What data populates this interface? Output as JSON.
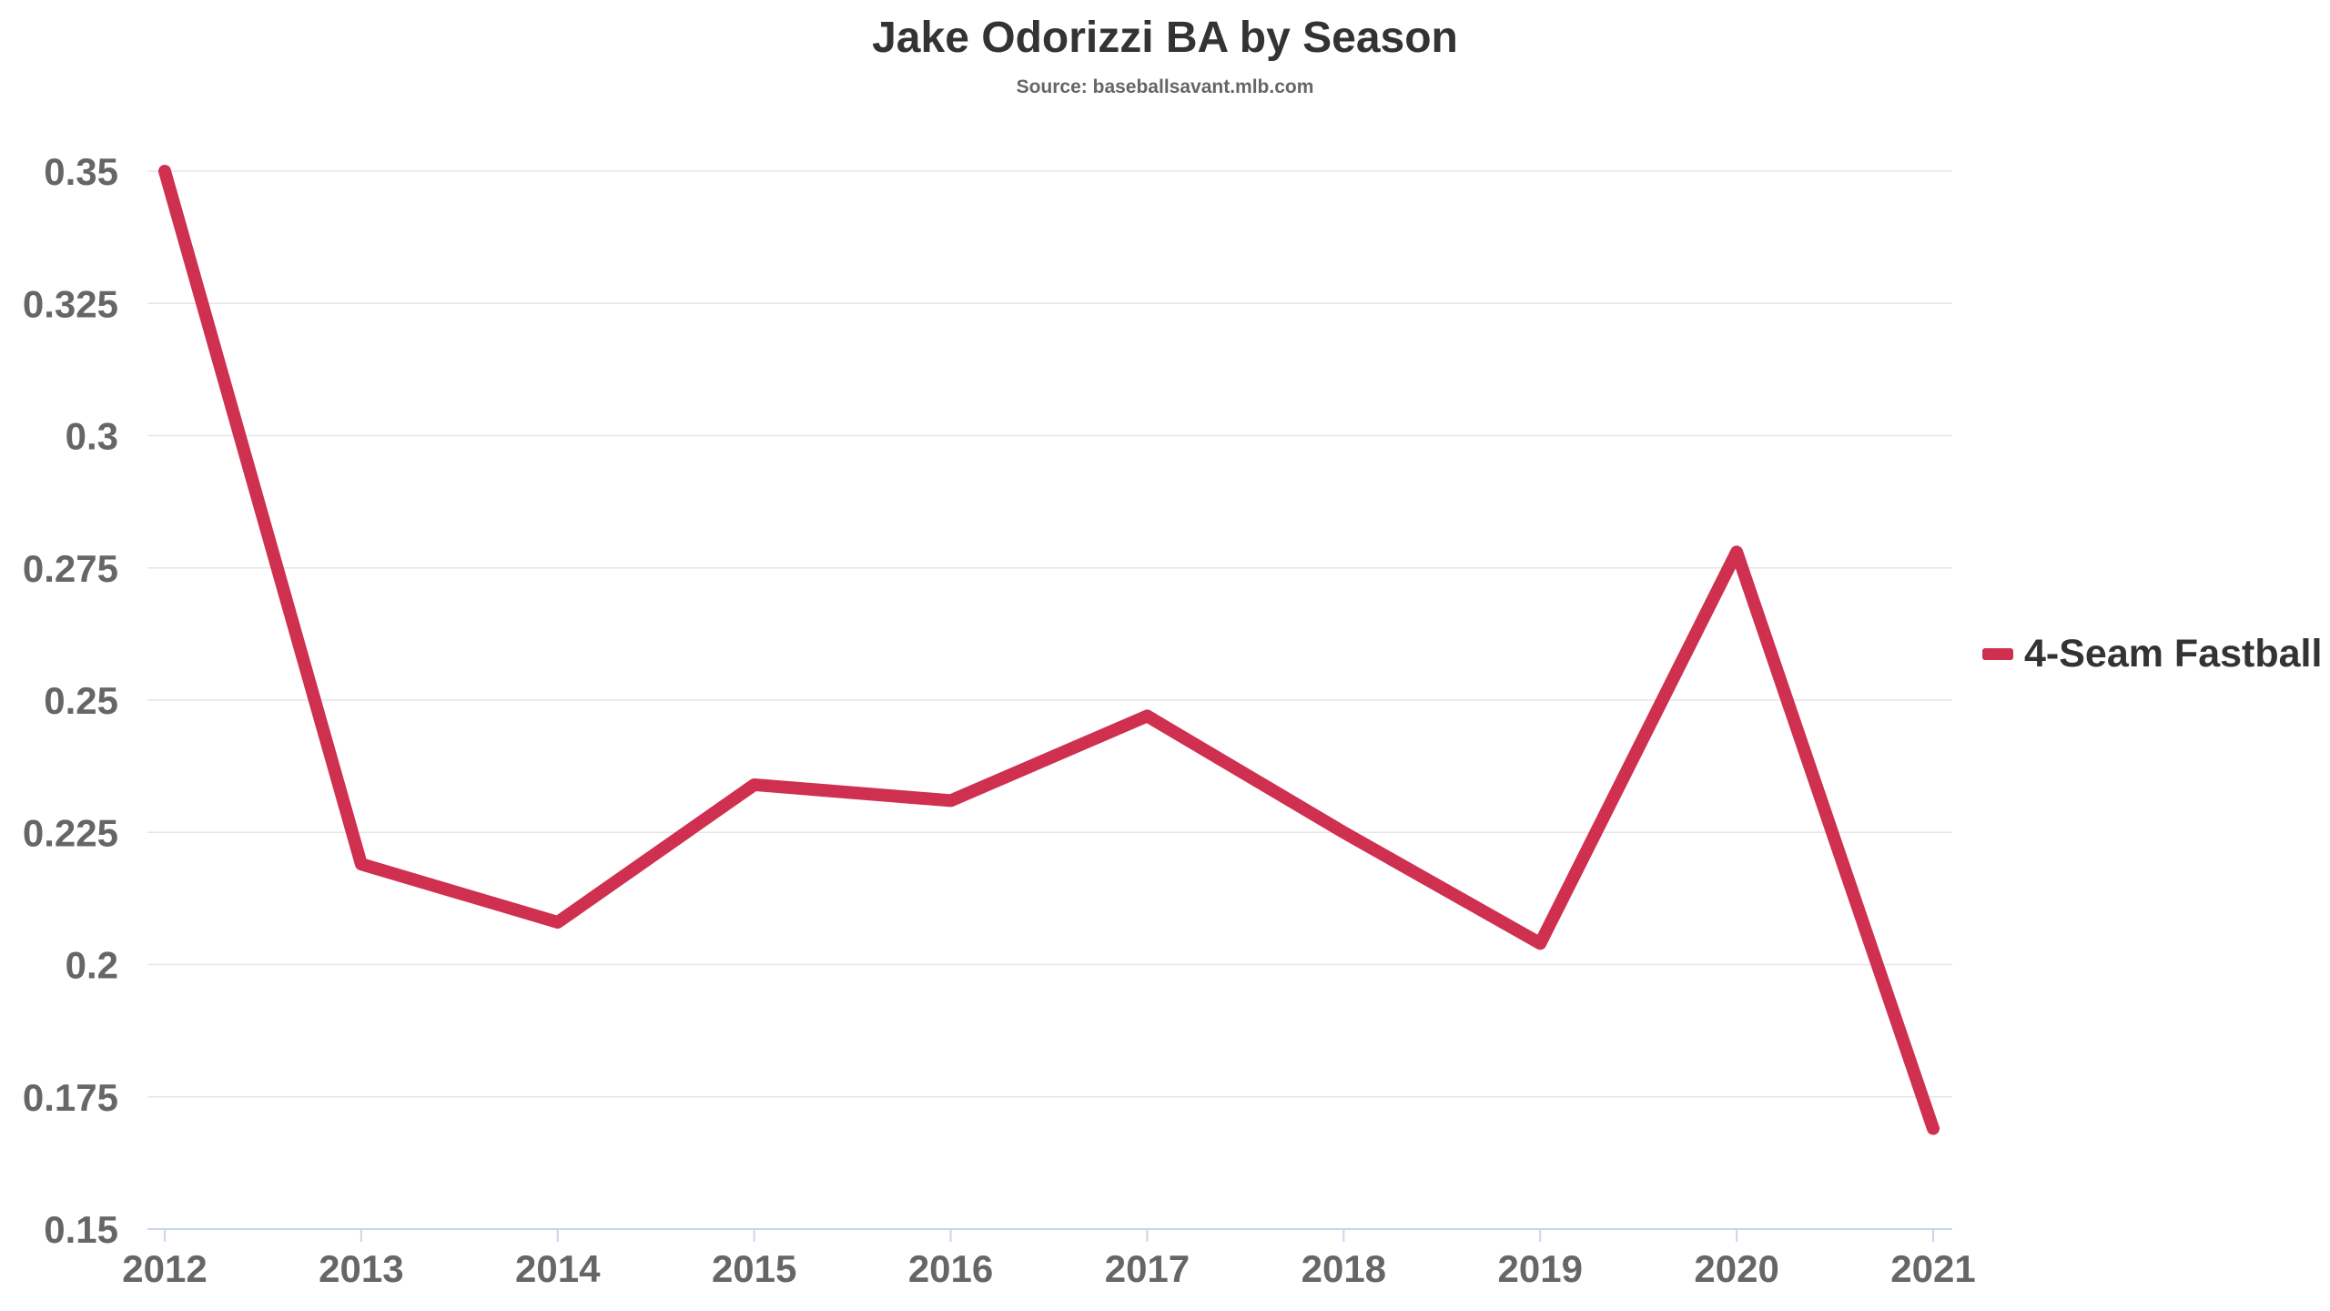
{
  "chart_data": {
    "type": "line",
    "title": "Jake Odorizzi BA by Season",
    "subtitle": "Source: baseballsavant.mlb.com",
    "xlabel": "",
    "ylabel": "",
    "categories": [
      "2012",
      "2013",
      "2014",
      "2015",
      "2016",
      "2017",
      "2018",
      "2019",
      "2020",
      "2021"
    ],
    "series": [
      {
        "name": "4-Seam Fastball",
        "color": "#d0304f",
        "values": [
          0.35,
          0.219,
          0.208,
          0.234,
          0.231,
          0.247,
          0.225,
          0.204,
          0.278,
          0.169
        ]
      }
    ],
    "yticks": [
      "0.15",
      "0.175",
      "0.2",
      "0.225",
      "0.25",
      "0.275",
      "0.3",
      "0.325",
      "0.35"
    ],
    "ylim": [
      0.15,
      0.35
    ],
    "grid": true,
    "legend_position": "right"
  }
}
